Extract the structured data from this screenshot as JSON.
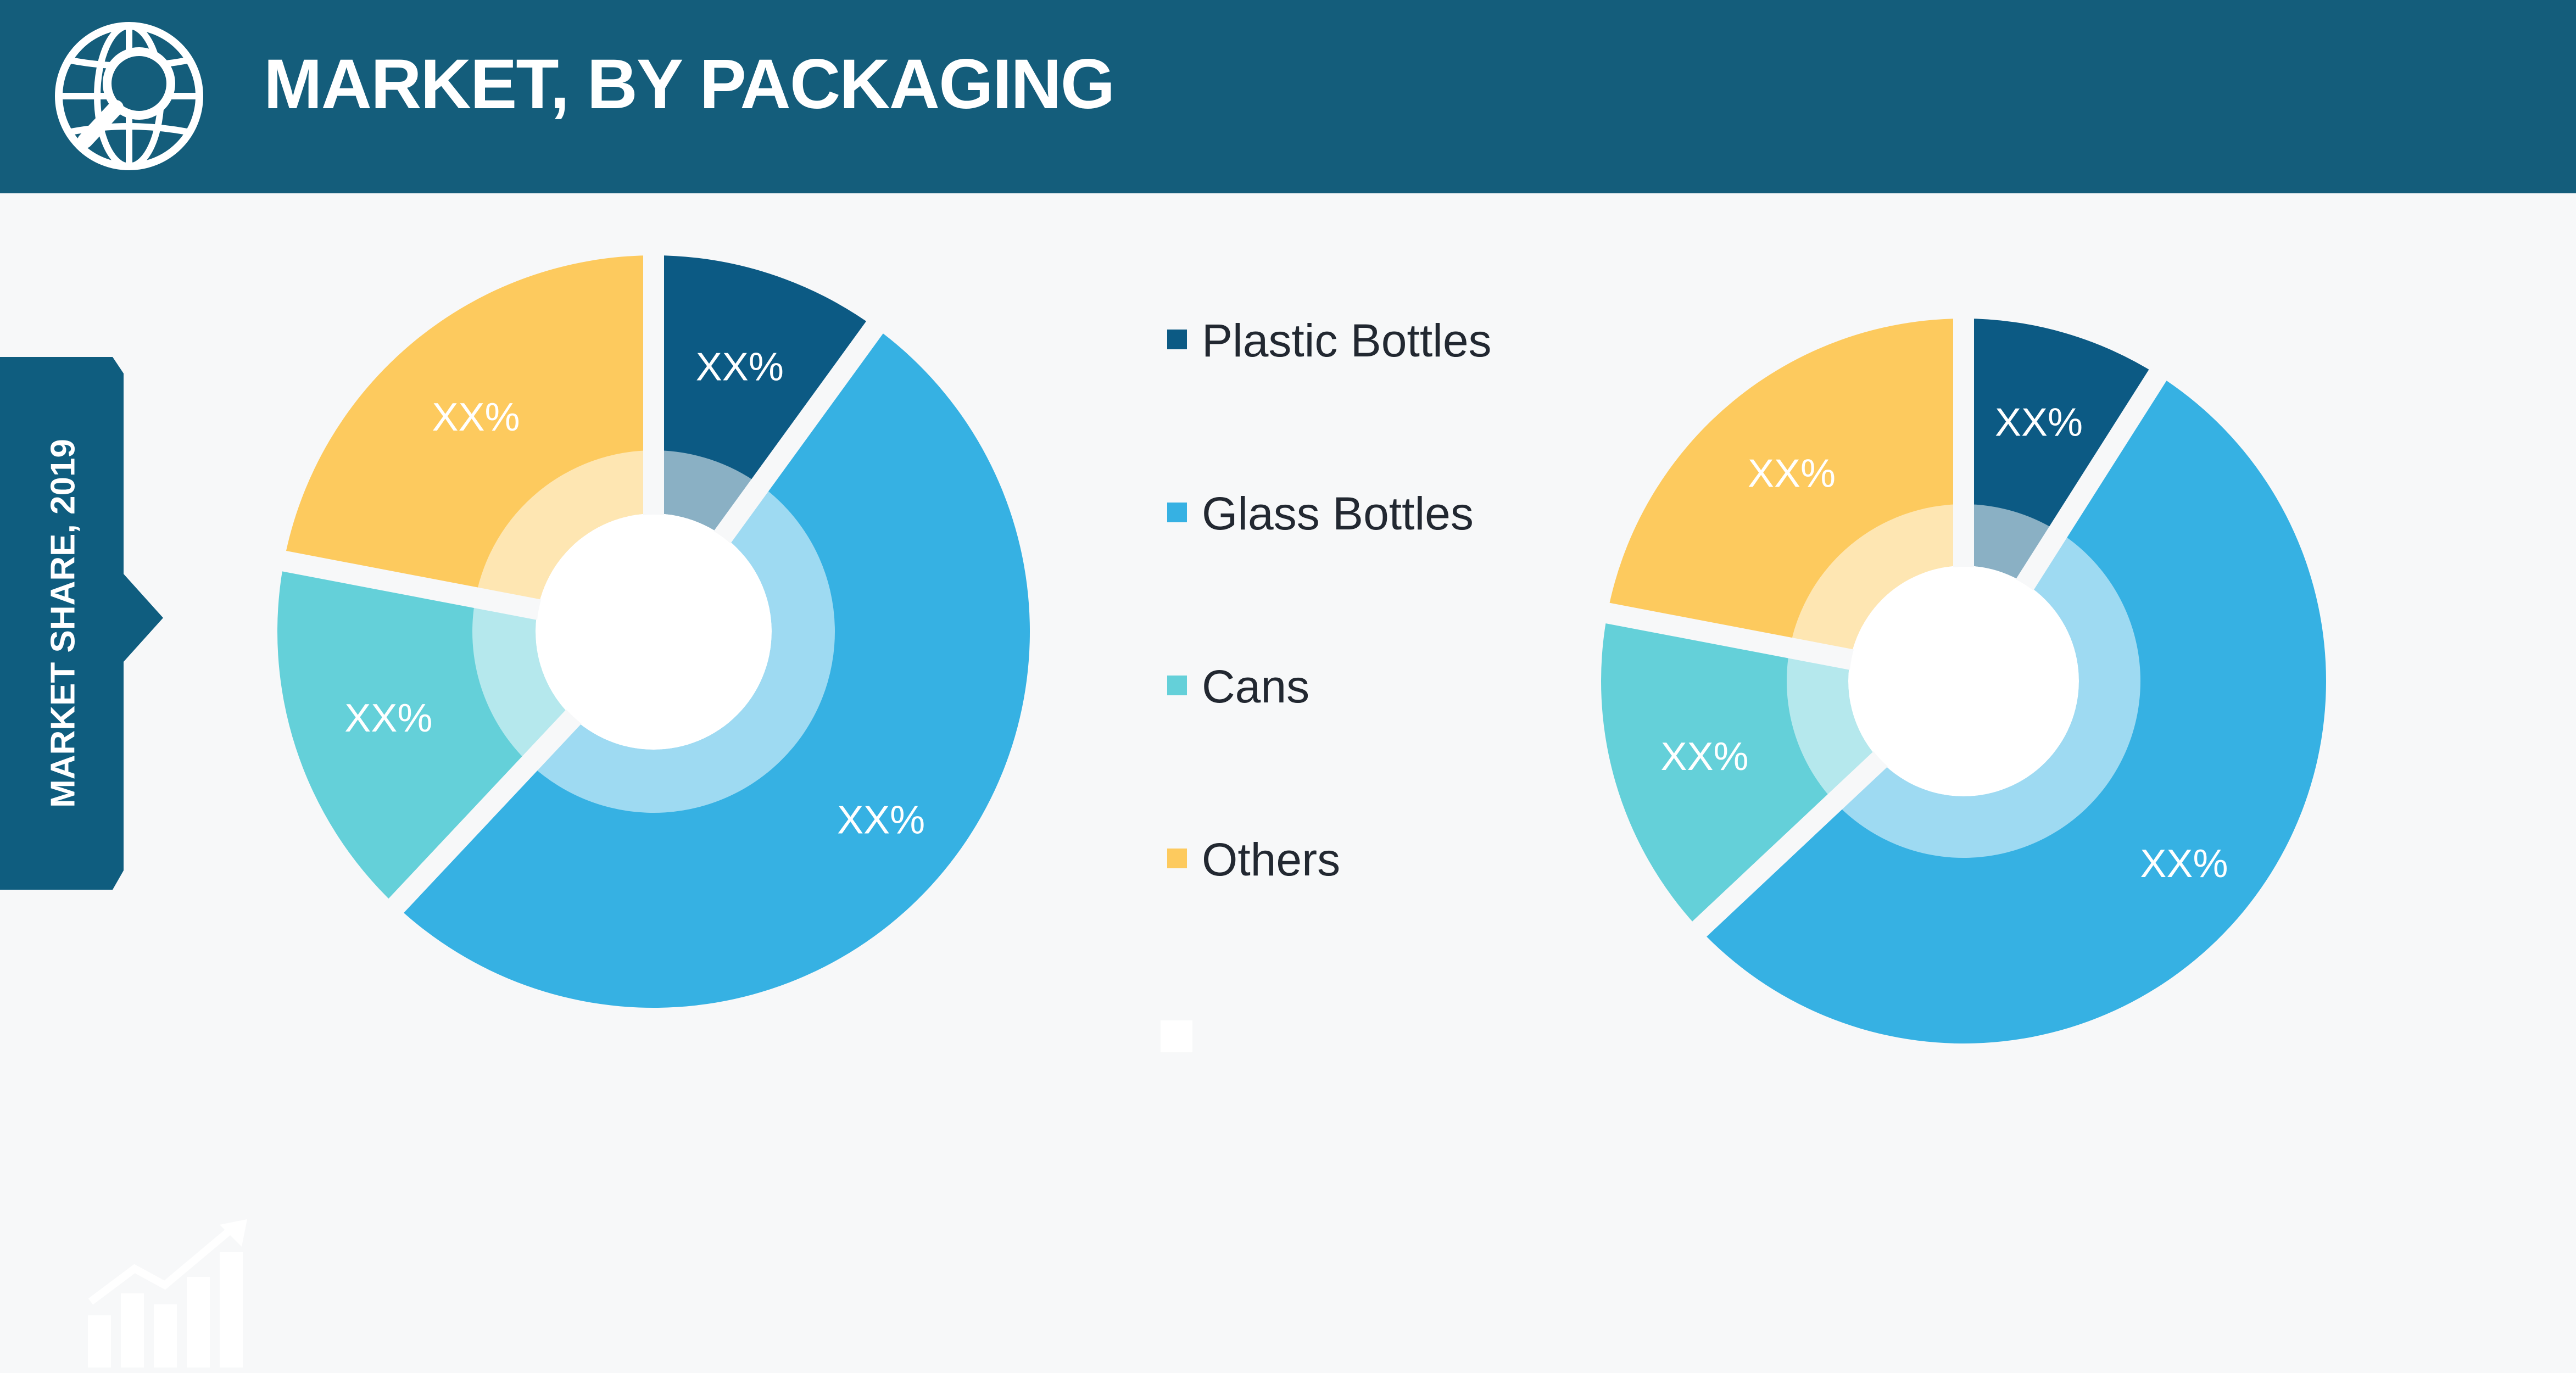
{
  "header": {
    "title": "MARKET, BY PACKAGING",
    "icon": "globe-search-icon"
  },
  "side_tab": {
    "label": "MARKET SHARE, 2019"
  },
  "colors": {
    "header_bg": "#145d7b",
    "side_tab_bg": "#0f5d7f",
    "plastic_bottles": "#0c5a84",
    "glass_bottles": "#36b1e3",
    "cans": "#64d0d9",
    "others": "#fdca5e"
  },
  "legend": [
    {
      "label": "Plastic Bottles",
      "color": "#0c5a84"
    },
    {
      "label": "Glass Bottles",
      "color": "#36b1e3"
    },
    {
      "label": "Cans",
      "color": "#64d0d9"
    },
    {
      "label": "Others",
      "color": "#fdca5e"
    }
  ],
  "footer": {
    "icon": "growth-chart-icon"
  },
  "chart_data": [
    {
      "type": "pie",
      "title": "",
      "categories": [
        "Plastic Bottles",
        "Glass Bottles",
        "Cans",
        "Others"
      ],
      "values": [
        10,
        52,
        16,
        22
      ],
      "data_labels": [
        "XX%",
        "XX%",
        "XX%",
        "XX%"
      ]
    },
    {
      "type": "pie",
      "title": "",
      "categories": [
        "Plastic Bottles",
        "Glass Bottles",
        "Cans",
        "Others"
      ],
      "values": [
        9,
        54,
        15,
        22
      ],
      "data_labels": [
        "XX%",
        "XX%",
        "XX%",
        "XX%"
      ]
    }
  ]
}
